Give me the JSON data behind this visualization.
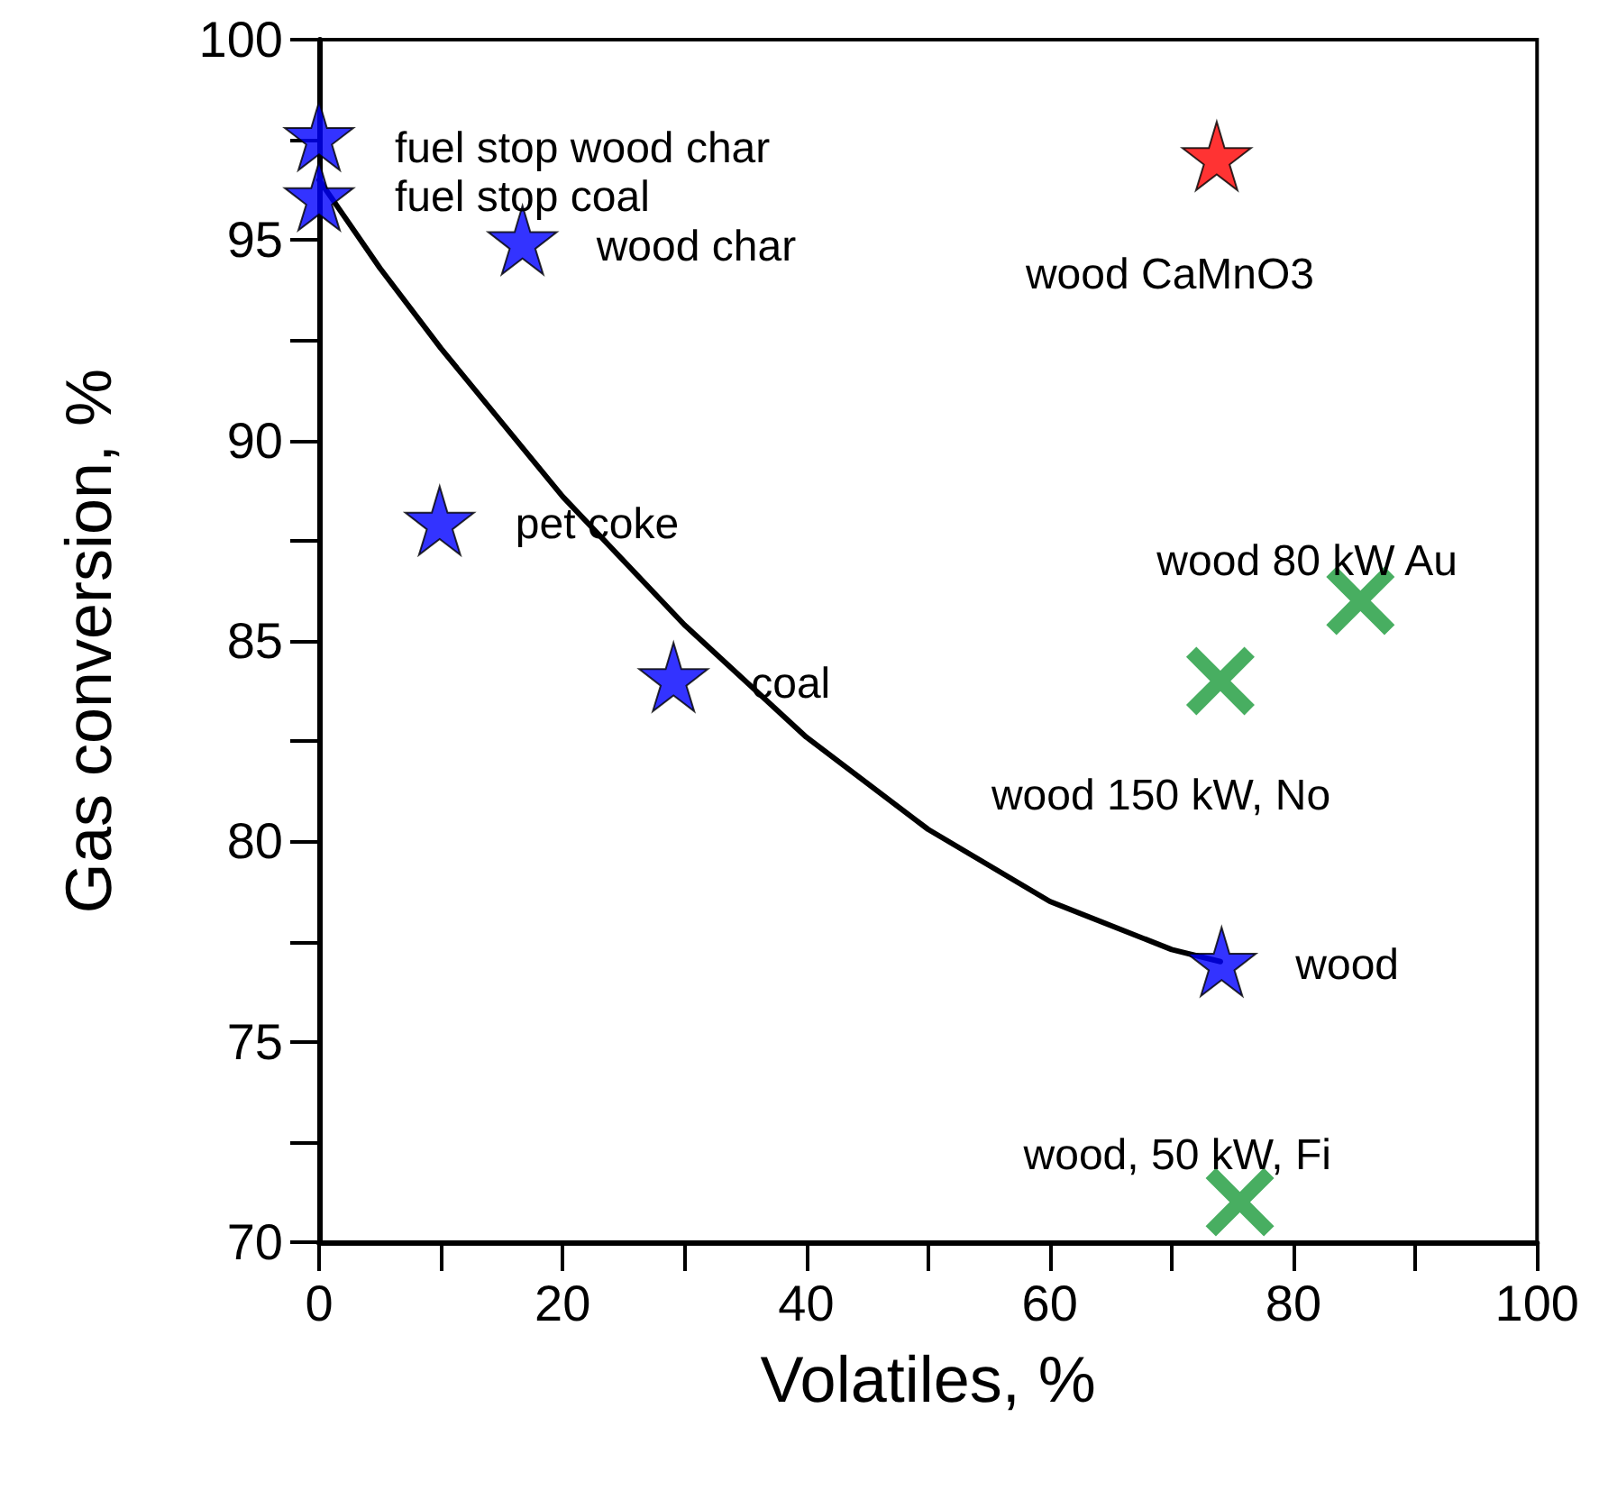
{
  "chart_data": {
    "type": "scatter",
    "xlabel": "Volatiles, %",
    "ylabel": "Gas conversion, %",
    "xlim": [
      0,
      100
    ],
    "ylim": [
      70,
      100
    ],
    "xticks": [
      0,
      {
        "value": 10,
        "label": null
      },
      20,
      {
        "value": 30,
        "label": null
      },
      40,
      {
        "value": 50,
        "label": null
      },
      60,
      {
        "value": 70,
        "label": null
      },
      80,
      {
        "value": 90,
        "label": null
      },
      100
    ],
    "yticks": [
      70,
      {
        "value": 72.5,
        "label": null
      },
      75,
      {
        "value": 77.5,
        "label": null
      },
      80,
      {
        "value": 82.5,
        "label": null
      },
      85,
      {
        "value": 87.5,
        "label": null
      },
      90,
      {
        "value": 92.5,
        "label": null
      },
      95,
      {
        "value": 97.5,
        "label": null
      },
      100
    ],
    "grid": false,
    "series": [
      {
        "marker": "star",
        "color": "#0000ff",
        "x": [
          0,
          0,
          16.7,
          9.9,
          29.1,
          74.1
        ],
        "values": [
          97.6,
          96.1,
          95,
          88,
          84.1,
          77
        ]
      },
      {
        "marker": "star",
        "color": "#ff0000",
        "x": [
          73.7
        ],
        "values": [
          97.1
        ]
      },
      {
        "marker": "cross",
        "color": "#1a9a3a",
        "x": [
          74,
          85.5,
          75.6
        ],
        "values": [
          84,
          86,
          71
        ]
      },
      {
        "type": "line",
        "marker": "none",
        "line_style": "solid",
        "color": "#000000",
        "x": [
          0,
          5,
          10,
          20,
          30,
          40,
          50,
          60,
          70,
          74
        ],
        "values": [
          96.5,
          94.3,
          92.3,
          88.6,
          85.4,
          82.6,
          80.3,
          78.5,
          77.3,
          77
        ]
      }
    ],
    "annotations": [
      {
        "text": "fuel stop wood char",
        "x": 0,
        "y": 97.6
      },
      {
        "text": "fuel stop coal",
        "x": 0,
        "y": 96.1
      },
      {
        "text": "wood char",
        "x": 16.7,
        "y": 95
      },
      {
        "text": "pet coke",
        "x": 9.9,
        "y": 88
      },
      {
        "text": "coal",
        "x": 29.1,
        "y": 84.1
      },
      {
        "text": "wood",
        "x": 74.1,
        "y": 77
      },
      {
        "text": "wood CaMnO3",
        "x": 73.7,
        "y": 97.1
      },
      {
        "text": "wood 80 kW Au",
        "x": 85.5,
        "y": 86
      },
      {
        "text": "wood 150 kW, No",
        "x": 74,
        "y": 84
      },
      {
        "text": "wood, 50 kW, Fi",
        "x": 75.6,
        "y": 71
      }
    ]
  }
}
